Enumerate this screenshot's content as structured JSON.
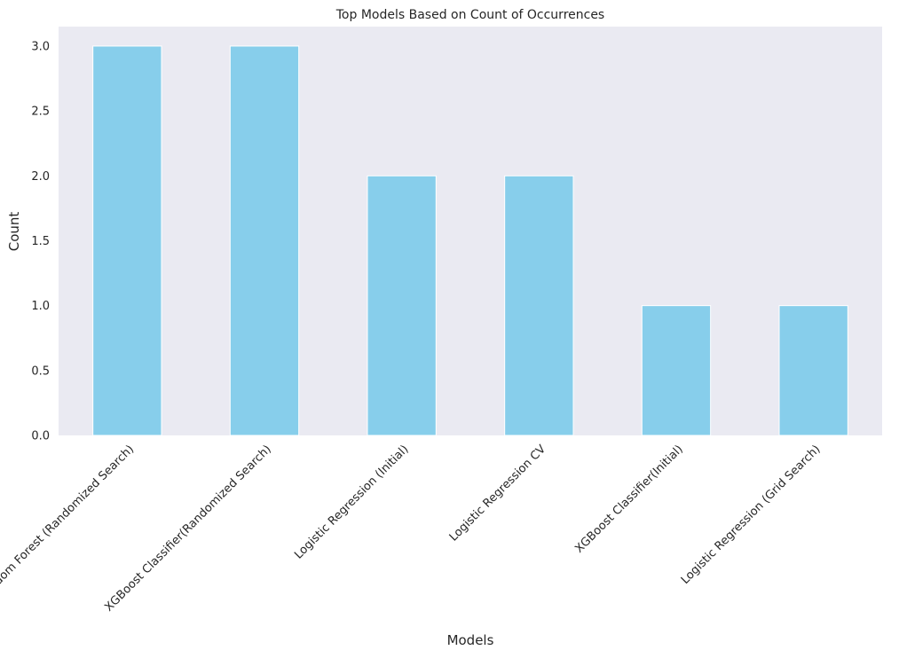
{
  "chart_data": {
    "type": "bar",
    "title": "Top Models Based on Count of Occurrences",
    "xlabel": "Models",
    "ylabel": "Count",
    "categories": [
      "Random Forest (Randomized Search)",
      "XGBoost Classifier(Randomized Search)",
      "Logistic Regression (Initial)",
      "Logistic Regression CV",
      "XGBoost Classifier(Initial)",
      "Logistic Regression (Grid Search)"
    ],
    "values": [
      3,
      3,
      2,
      2,
      1,
      1
    ],
    "ylim": [
      0,
      3.15
    ],
    "yticks": [
      "0.0",
      "0.5",
      "1.0",
      "1.5",
      "2.0",
      "2.5",
      "3.0"
    ],
    "grid": false,
    "colors": {
      "bar": "#87ceeb",
      "bar_edge": "#ffffff",
      "plot_background": "#eaeaf2",
      "text": "#262626"
    }
  }
}
